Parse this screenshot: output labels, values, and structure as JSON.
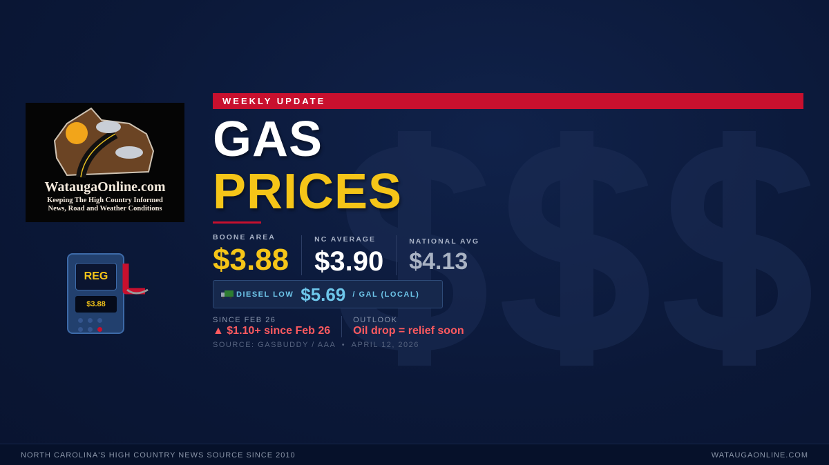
{
  "watermark": "$$$",
  "logo": {
    "name": "WataugaOnline.com",
    "tagline_1": "Keeping The High Country Informed",
    "tagline_2": "News, Road and Weather Conditions"
  },
  "pump": {
    "grade": "REG",
    "price": "$3.88"
  },
  "banner": "WEEKLY UPDATE",
  "title": {
    "line1": "GAS",
    "line2": "PRICES"
  },
  "stats": [
    {
      "label": "BOONE AREA",
      "value": "$3.88",
      "color": "#f5c518"
    },
    {
      "label": "NC AVERAGE",
      "value": "$3.90",
      "color": "#ffffff"
    },
    {
      "label": "NATIONAL AVG",
      "value": "$4.13",
      "color": "#a9b3c4"
    }
  ],
  "diesel": {
    "icon": "truck-icon",
    "label": "DIESEL LOW",
    "value": "$5.69",
    "unit": "/ GAL (LOCAL)"
  },
  "change": {
    "label": "SINCE FEB 26",
    "value": "▲ $1.10+ since Feb 26"
  },
  "outlook": {
    "label": "OUTLOOK",
    "value": "Oil drop = relief soon"
  },
  "source": "SOURCE: GASBUDDY / AAA  •  APRIL 12, 2026",
  "footer": {
    "left": "NORTH CAROLINA'S HIGH COUNTRY NEWS SOURCE SINCE 2010",
    "right": "WATAUGAONLINE.COM"
  },
  "colors": {
    "accent_red": "#c8102e",
    "gold": "#f5c518",
    "diesel_blue": "#6ec6ea",
    "alert": "#ff5a5f"
  }
}
